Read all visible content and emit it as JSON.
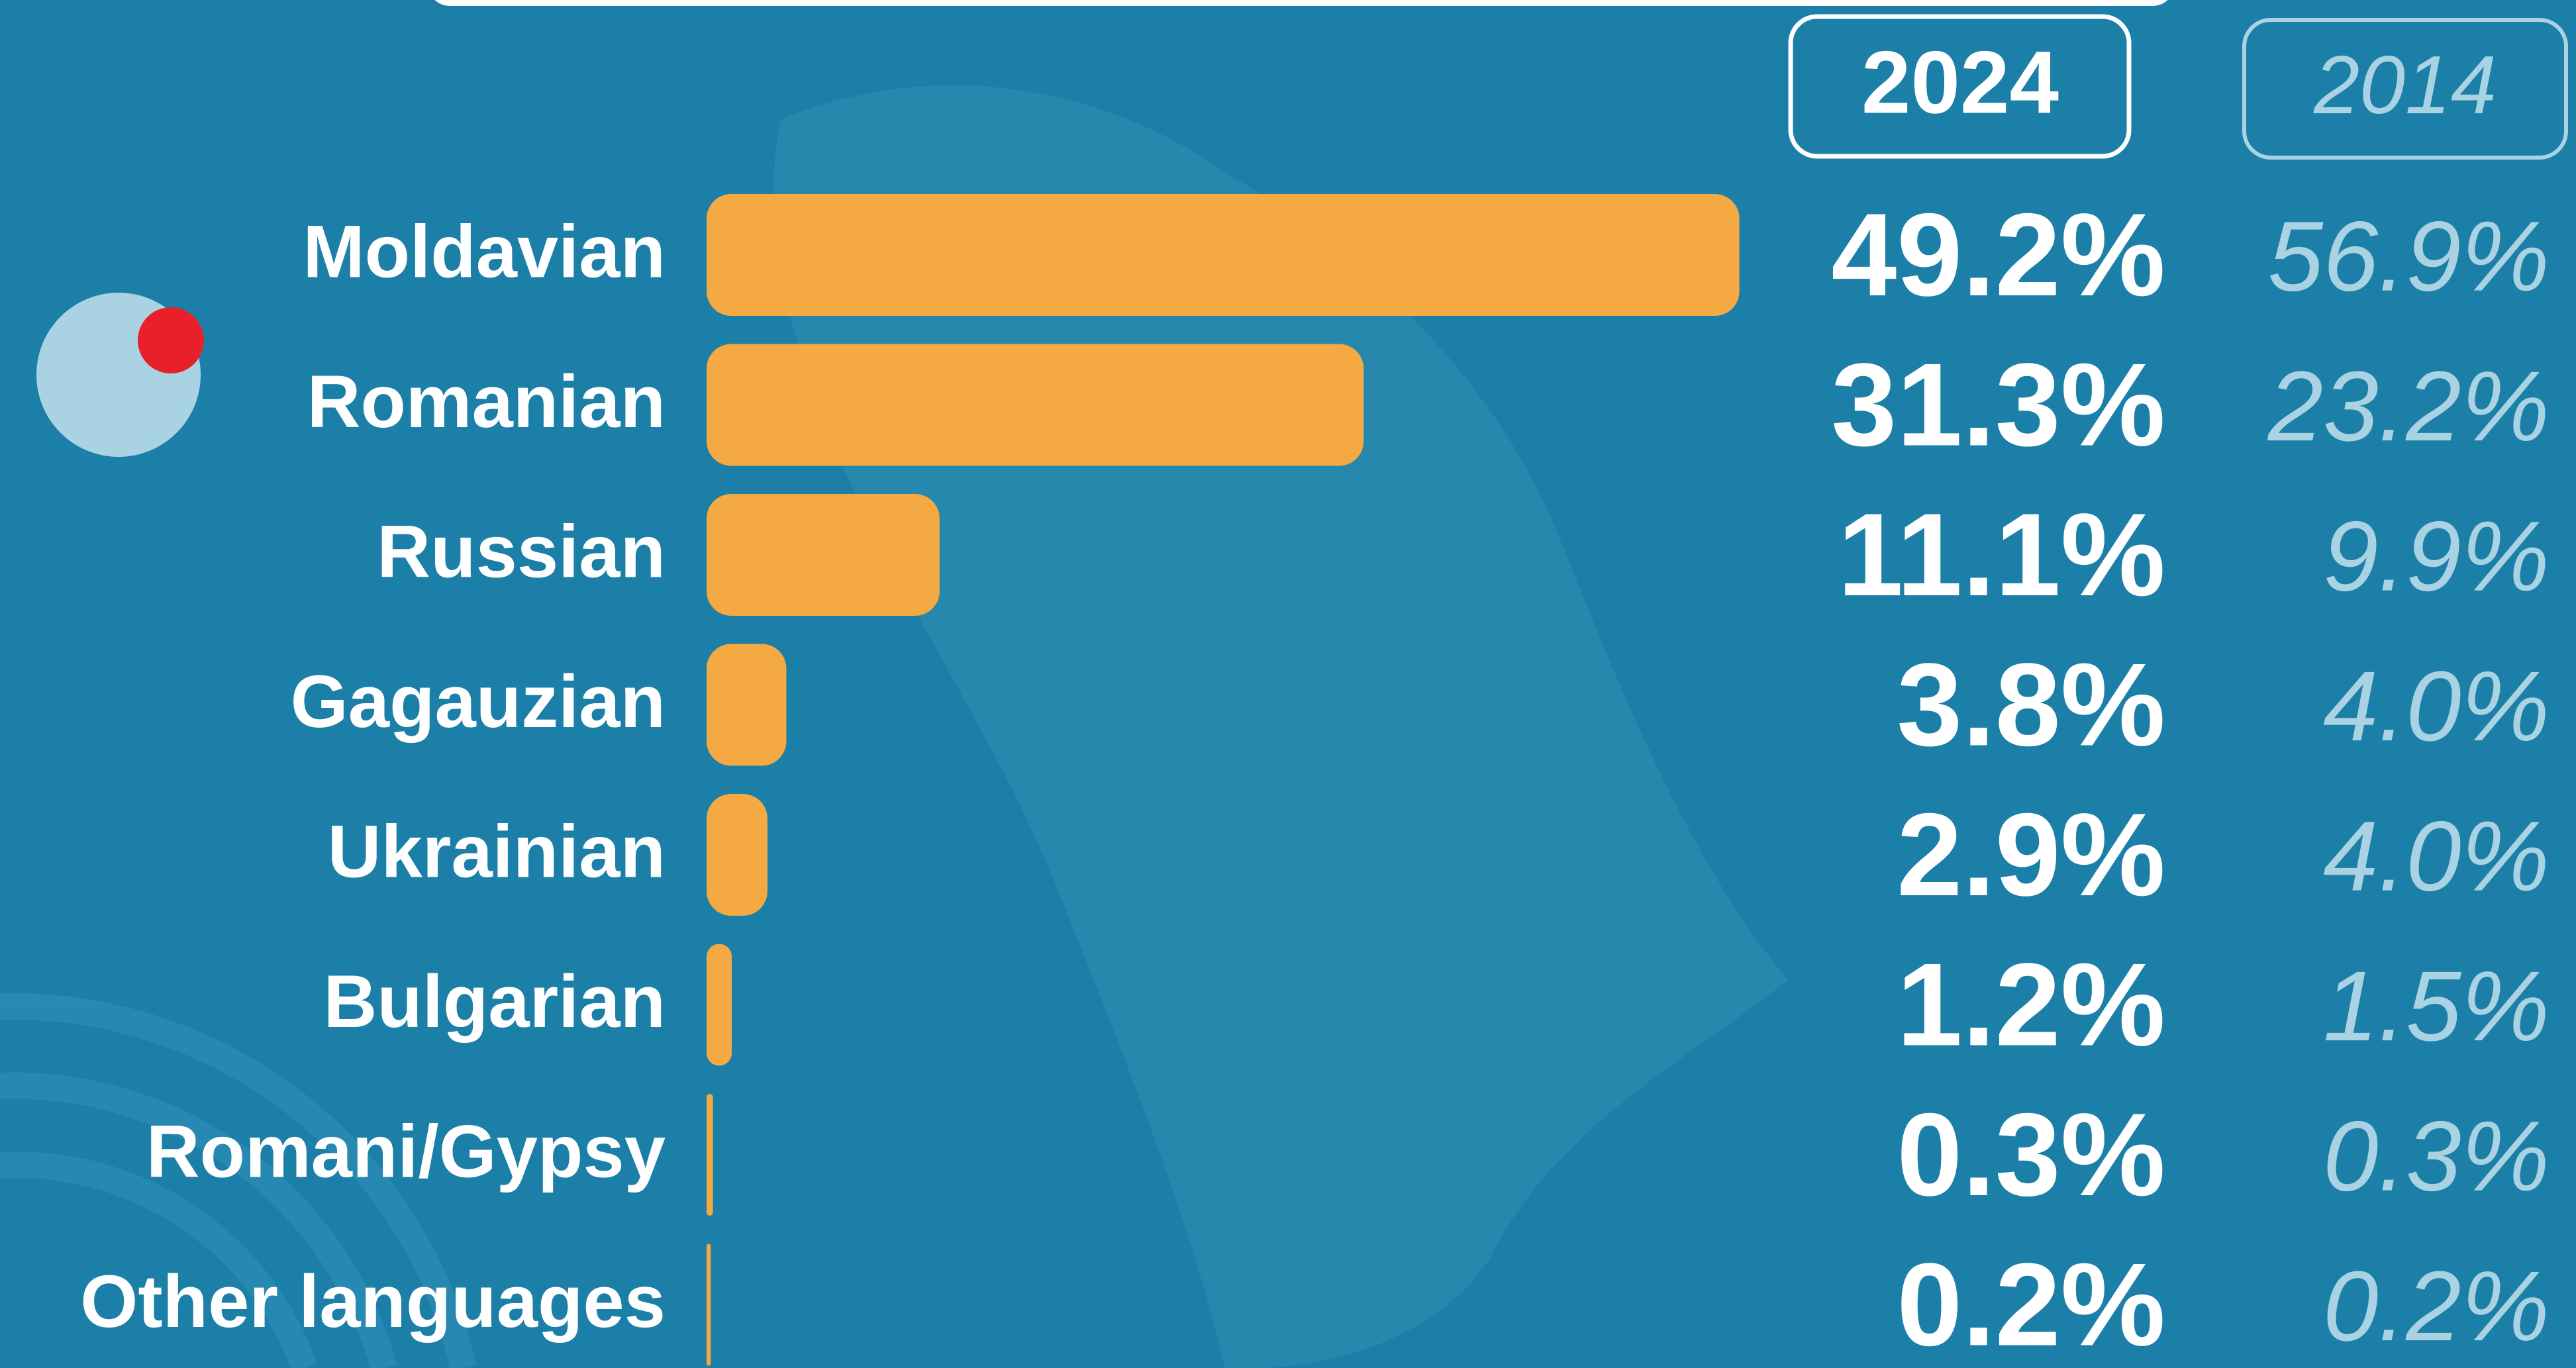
{
  "chart_data": {
    "type": "bar",
    "categories": [
      "Moldavian",
      "Romanian",
      "Russian",
      "Gagauzian",
      "Ukrainian",
      "Bulgarian",
      "Romani/Gypsy",
      "Other languages"
    ],
    "series": [
      {
        "name": "2024",
        "color": "#f5a942",
        "values": [
          49.2,
          31.3,
          11.1,
          3.8,
          2.9,
          1.2,
          0.3,
          0.2
        ],
        "value_labels": [
          "49.2%",
          "31.3%",
          "11.1%",
          "3.8%",
          "2.9%",
          "1.2%",
          "0.3%",
          "0.2%"
        ]
      },
      {
        "name": "2014",
        "color": "#a9d3e3",
        "values": [
          56.9,
          23.2,
          9.9,
          4.0,
          4.0,
          1.5,
          0.3,
          0.2
        ],
        "value_labels": [
          "56.9%",
          "23.2%",
          "9.9%",
          "4.0%",
          "4.0%",
          "1.5%",
          "0.3%",
          "0.2%"
        ]
      }
    ]
  }
}
